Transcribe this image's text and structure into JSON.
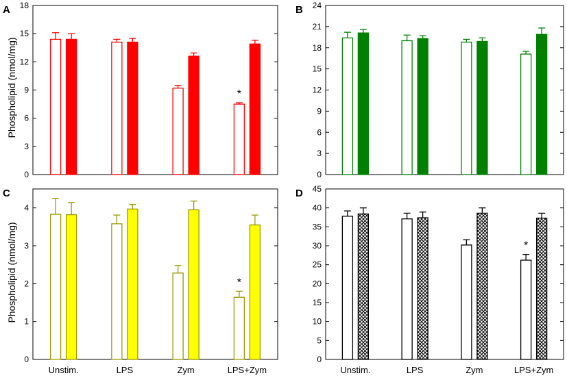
{
  "figure": {
    "ylabel_top": "Phospholipid (nmol/mg)",
    "ylabel_bottom": "Phospholipid (nmol/mg)"
  },
  "chart_data": [
    {
      "type": "bar",
      "panel": "A",
      "categories": [
        "Unstim.",
        "LPS",
        "Zym",
        "LPS+Zym"
      ],
      "ylim": [
        0,
        18
      ],
      "yticks": [
        0,
        3,
        6,
        9,
        12,
        15,
        18
      ],
      "ylabel": "Phospholipid (nmol/mg)",
      "color": "#ff0000",
      "series": [
        {
          "name": "open",
          "style": "open",
          "values": [
            14.4,
            14.1,
            9.2,
            7.5
          ],
          "errors": [
            0.7,
            0.3,
            0.3,
            0.15
          ]
        },
        {
          "name": "filled",
          "style": "solid",
          "values": [
            14.4,
            14.1,
            12.6,
            13.9
          ],
          "errors": [
            0.6,
            0.4,
            0.35,
            0.4
          ]
        }
      ],
      "annotations": [
        {
          "category": 3,
          "series": 0,
          "text": "*"
        }
      ]
    },
    {
      "type": "bar",
      "panel": "B",
      "categories": [
        "Unstim.",
        "LPS",
        "Zym",
        "LPS+Zym"
      ],
      "ylim": [
        0,
        24
      ],
      "yticks": [
        0,
        3,
        6,
        9,
        12,
        15,
        18,
        21,
        24
      ],
      "ylabel": "",
      "color": "#008000",
      "series": [
        {
          "name": "open",
          "style": "open",
          "values": [
            19.4,
            19.0,
            18.8,
            17.1
          ],
          "errors": [
            0.8,
            0.8,
            0.4,
            0.4
          ]
        },
        {
          "name": "filled",
          "style": "solid",
          "values": [
            20.1,
            19.3,
            18.9,
            19.9
          ],
          "errors": [
            0.5,
            0.4,
            0.5,
            0.9
          ]
        }
      ],
      "annotations": []
    },
    {
      "type": "bar",
      "panel": "C",
      "categories": [
        "Unstim.",
        "LPS",
        "Zym",
        "LPS+Zym"
      ],
      "ylim": [
        0,
        4.5
      ],
      "yticks": [
        0,
        1,
        2,
        3,
        4
      ],
      "ylabel": "Phospholipid (nmol/mg)",
      "color": "#999900",
      "fill": "#ffff00",
      "series": [
        {
          "name": "open",
          "style": "open",
          "values": [
            3.83,
            3.58,
            2.28,
            1.64
          ],
          "errors": [
            0.42,
            0.23,
            0.2,
            0.16
          ]
        },
        {
          "name": "filled",
          "style": "solid",
          "values": [
            3.82,
            3.97,
            3.95,
            3.55
          ],
          "errors": [
            0.32,
            0.12,
            0.23,
            0.26
          ]
        }
      ],
      "annotations": [
        {
          "category": 3,
          "series": 0,
          "text": "*"
        }
      ]
    },
    {
      "type": "bar",
      "panel": "D",
      "categories": [
        "Unstim.",
        "LPS",
        "Zym",
        "LPS+Zym"
      ],
      "ylim": [
        0,
        45
      ],
      "yticks": [
        0,
        5,
        10,
        15,
        20,
        25,
        30,
        35,
        40,
        45
      ],
      "ylabel": "",
      "color": "#000000",
      "series": [
        {
          "name": "open",
          "style": "open",
          "values": [
            37.8,
            37.1,
            30.2,
            26.2
          ],
          "errors": [
            1.4,
            1.5,
            1.4,
            1.5
          ]
        },
        {
          "name": "filled",
          "style": "hatched",
          "values": [
            38.4,
            37.4,
            38.6,
            37.3
          ],
          "errors": [
            1.6,
            1.5,
            1.4,
            1.3
          ]
        }
      ],
      "annotations": [
        {
          "category": 3,
          "series": 0,
          "text": "*"
        }
      ]
    }
  ]
}
